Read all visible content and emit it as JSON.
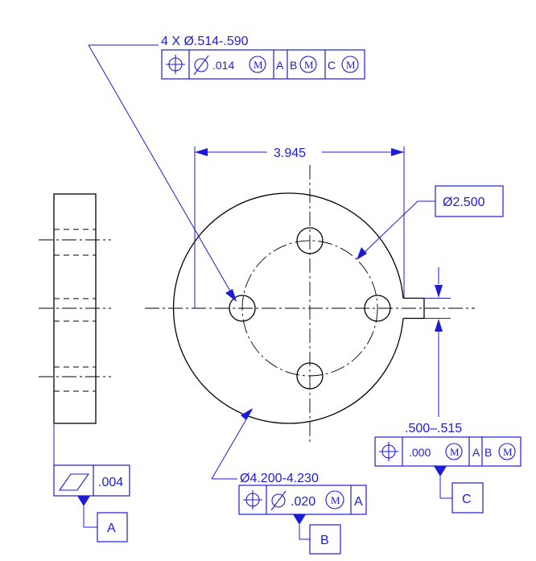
{
  "dimensions": {
    "hole_pattern_callout": "4 X Ø.514-.590",
    "spacing": "3.945",
    "bolt_circle_diameter": "Ø2.500",
    "outer_diameter": "Ø4.200-4.230",
    "slot_width": ".500–.515"
  },
  "fcf_holes": {
    "position_symbol": "⌖",
    "diameter_symbol": "Ø",
    "tolerance": ".014",
    "modifier": "M",
    "datum_a": "A",
    "datum_b": "B",
    "datum_b_mod": "M",
    "datum_c": "C",
    "datum_c_mod": "M"
  },
  "fcf_outer": {
    "position_symbol": "⌖",
    "diameter_symbol": "Ø",
    "tolerance": ".020",
    "modifier": "M",
    "datum_a": "A"
  },
  "fcf_slot": {
    "position_symbol": "⌖",
    "tolerance": ".000",
    "modifier": "M",
    "datum_a": "A",
    "datum_b": "B",
    "datum_b_mod": "M"
  },
  "fcf_flatness": {
    "symbol": "flatness",
    "tolerance": ".004"
  },
  "datums": {
    "a": "A",
    "b": "B",
    "c": "C"
  }
}
